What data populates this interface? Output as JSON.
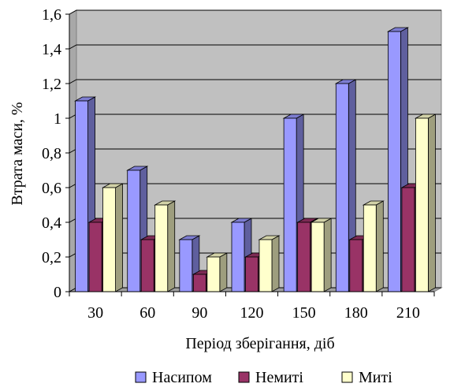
{
  "chart_data": {
    "type": "bar",
    "title": "",
    "xlabel": "Період зберігання, діб",
    "ylabel": "Втрата маси, %",
    "categories": [
      "30",
      "60",
      "90",
      "120",
      "150",
      "180",
      "210"
    ],
    "ylim": [
      0,
      1.6
    ],
    "yticks": [
      "0",
      "0,2",
      "0,4",
      "0,6",
      "0,8",
      "1",
      "1,2",
      "1,4",
      "1,6"
    ],
    "grid": true,
    "legend_position": "bottom",
    "series": [
      {
        "name": "Насипом",
        "color": "#9999ff",
        "values": [
          1.1,
          0.7,
          0.3,
          0.4,
          1.0,
          1.2,
          1.5
        ]
      },
      {
        "name": "Немиті",
        "color": "#993366",
        "values": [
          0.4,
          0.3,
          0.1,
          0.2,
          0.4,
          0.3,
          0.6
        ]
      },
      {
        "name": "Миті",
        "color": "#ffffcc",
        "values": [
          0.6,
          0.5,
          0.2,
          0.3,
          0.4,
          0.5,
          1.0
        ]
      }
    ]
  }
}
